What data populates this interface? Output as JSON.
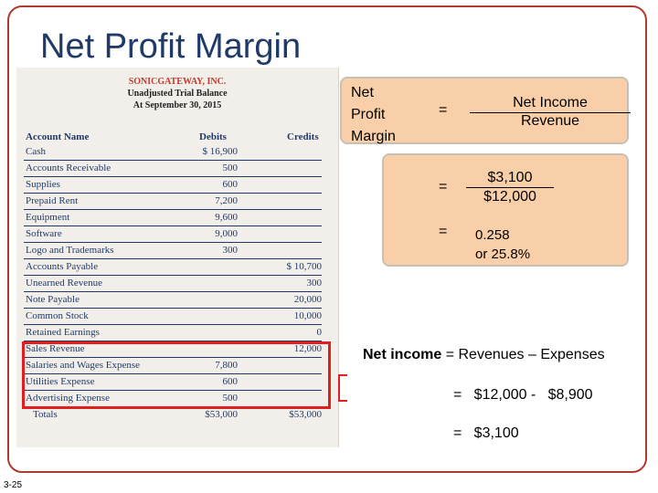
{
  "slide": {
    "title": "Net Profit Margin",
    "number": "3-25"
  },
  "trial_balance": {
    "company": "SONICGATEWAY, INC.",
    "subtitle1": "Unadjusted Trial Balance",
    "subtitle2": "At September 30, 2015",
    "headers": {
      "account": "Account Name",
      "debits": "Debits",
      "credits": "Credits"
    },
    "rows": [
      {
        "name": "Cash",
        "debit": "$  16,900",
        "credit": ""
      },
      {
        "name": "Accounts Receivable",
        "debit": "500",
        "credit": ""
      },
      {
        "name": "Supplies",
        "debit": "600",
        "credit": ""
      },
      {
        "name": "Prepaid Rent",
        "debit": "7,200",
        "credit": ""
      },
      {
        "name": "Equipment",
        "debit": "9,600",
        "credit": ""
      },
      {
        "name": "Software",
        "debit": "9,000",
        "credit": ""
      },
      {
        "name": "Logo and Trademarks",
        "debit": "300",
        "credit": ""
      },
      {
        "name": "Accounts Payable",
        "debit": "",
        "credit": "$  10,700"
      },
      {
        "name": "Unearned Revenue",
        "debit": "",
        "credit": "300"
      },
      {
        "name": "Note Payable",
        "debit": "",
        "credit": "20,000"
      },
      {
        "name": "Common Stock",
        "debit": "",
        "credit": "10,000"
      },
      {
        "name": "Retained Earnings",
        "debit": "",
        "credit": "0"
      },
      {
        "name": "Sales Revenue",
        "debit": "",
        "credit": "12,000"
      },
      {
        "name": "Salaries and Wages Expense",
        "debit": "7,800",
        "credit": ""
      },
      {
        "name": "Utilities Expense",
        "debit": "600",
        "credit": ""
      },
      {
        "name": "Advertising Expense",
        "debit": "500",
        "credit": ""
      }
    ],
    "totals": {
      "name": "Totals",
      "debit": "$53,000",
      "credit": "$53,000"
    }
  },
  "formula": {
    "label_line1": "Net",
    "label_line2": "Profit",
    "label_line3": "Margin",
    "eq": "=",
    "numerator": "Net Income",
    "denominator": "Revenue",
    "calc_numerator": "$3,100",
    "calc_denominator": "$12,000",
    "result_line1": "0.258",
    "result_line2": "or 25.8%"
  },
  "net_income": {
    "bold_label": "Net income",
    "rest": " = Revenues – Expenses",
    "calc1": "=   $12,000 -   $8,900",
    "calc2": "=   $3,100"
  },
  "colors": {
    "title": "#1f3a68",
    "frame": "#b03a2e",
    "box": "#f8cfa8",
    "highlight": "#e02020"
  }
}
